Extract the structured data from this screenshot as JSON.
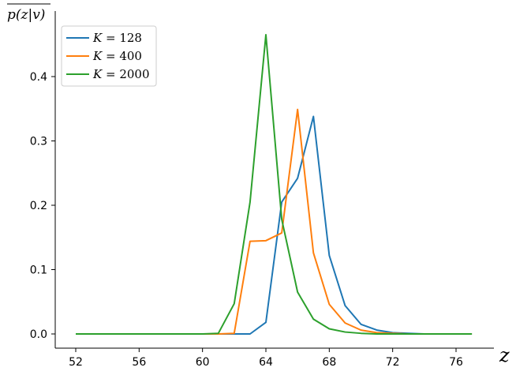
{
  "chart_data": {
    "type": "line",
    "title": "",
    "xlabel": "z",
    "ylabel": "p(z|v)",
    "xlim": [
      51,
      78
    ],
    "ylim": [
      -0.025,
      0.48
    ],
    "xticks": [
      52,
      56,
      60,
      64,
      68,
      72,
      76
    ],
    "yticks": [
      0.0,
      0.1,
      0.2,
      0.3,
      0.4
    ],
    "ytick_labels": [
      "0.0",
      "0.1",
      "0.2",
      "0.3",
      "0.4"
    ],
    "grid": false,
    "legend_position": "top-left",
    "x": [
      52,
      53,
      54,
      55,
      56,
      57,
      58,
      59,
      60,
      61,
      62,
      63,
      64,
      65,
      66,
      67,
      68,
      69,
      70,
      71,
      72,
      73,
      74,
      75,
      76,
      77
    ],
    "series": [
      {
        "name": "K = 128",
        "color": "#1f77b4",
        "values": [
          0,
          0,
          0,
          0,
          0,
          0,
          0,
          0,
          0,
          0,
          0,
          0,
          0.018,
          0.205,
          0.242,
          0.338,
          0.122,
          0.044,
          0.015,
          0.006,
          0.002,
          0.001,
          0,
          0,
          0,
          0
        ]
      },
      {
        "name": "K = 400",
        "color": "#ff7f0e",
        "values": [
          0,
          0,
          0,
          0,
          0,
          0,
          0,
          0,
          0,
          0,
          0.001,
          0.144,
          0.145,
          0.157,
          0.349,
          0.126,
          0.046,
          0.017,
          0.006,
          0.002,
          0.001,
          0,
          0,
          0,
          0,
          0
        ]
      },
      {
        "name": "K = 2000",
        "color": "#2ca02c",
        "values": [
          0,
          0,
          0,
          0,
          0,
          0,
          0,
          0,
          0,
          0.001,
          0.047,
          0.205,
          0.465,
          0.178,
          0.065,
          0.023,
          0.008,
          0.003,
          0.001,
          0,
          0,
          0,
          0,
          0,
          0,
          0
        ]
      }
    ]
  }
}
